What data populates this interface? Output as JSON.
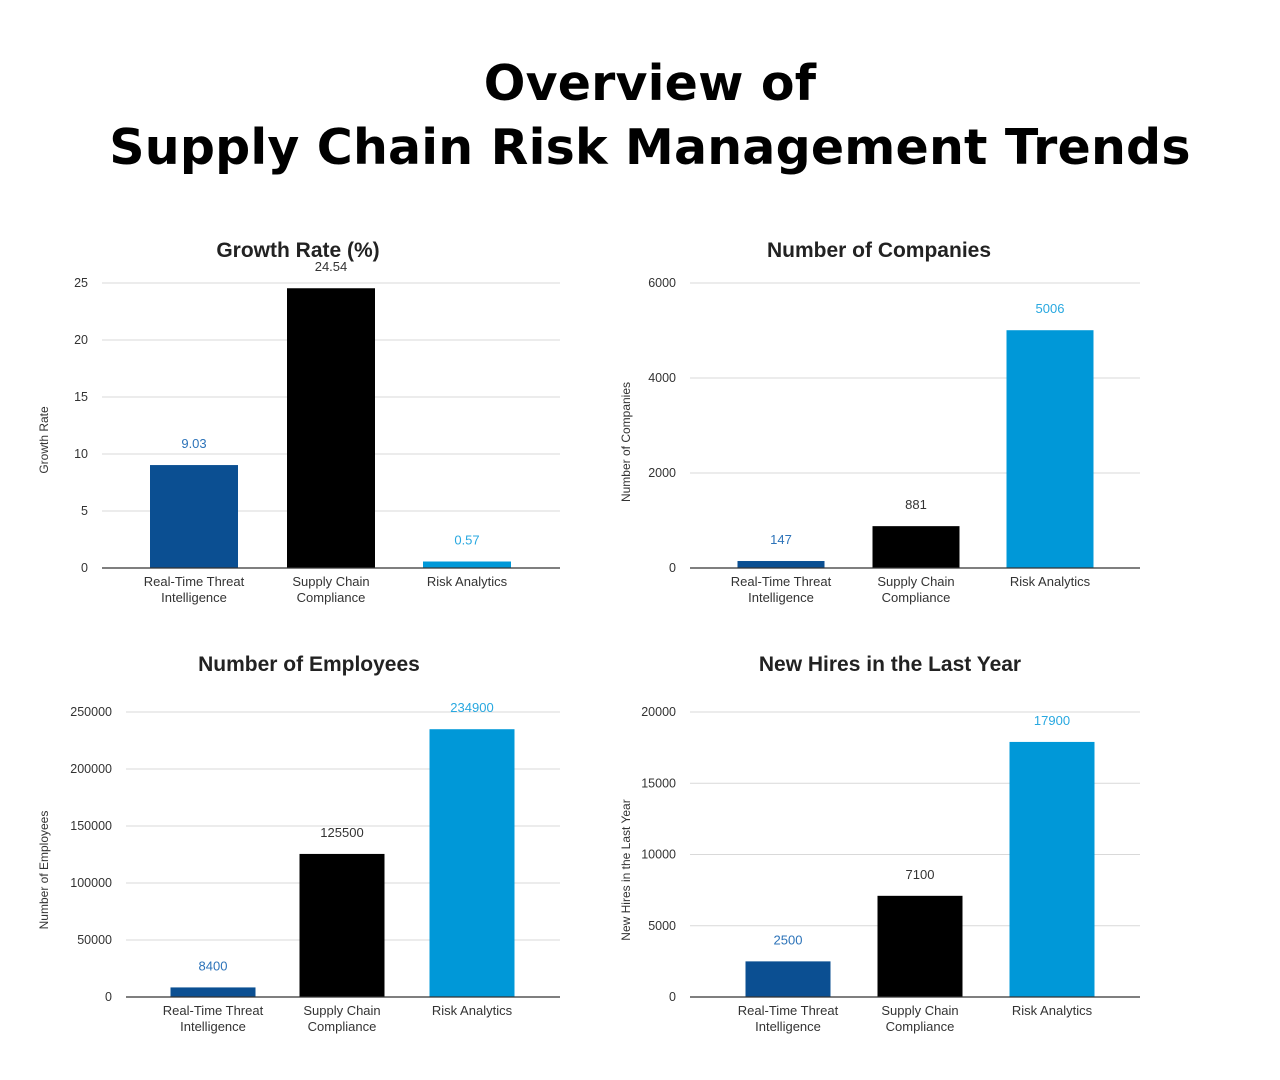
{
  "page": {
    "title_line1": "Overview of",
    "title_line2": "Supply Chain Risk Management Trends"
  },
  "colors": {
    "series": [
      "#0b4f92",
      "#000000",
      "#0098d8"
    ],
    "data_labels": [
      "#2c73b9",
      "#333333",
      "#28a8e0"
    ],
    "grid": "#d9d9d9",
    "axis": "#333333"
  },
  "chart_data": [
    {
      "type": "bar",
      "title": "Growth Rate (%)",
      "ylabel": "Growth Rate",
      "xlabel": "",
      "categories": [
        [
          "Real-Time Threat",
          "Intelligence"
        ],
        [
          "Supply Chain",
          "Compliance"
        ],
        [
          "Risk Analytics"
        ]
      ],
      "values": [
        9.03,
        24.54,
        0.57
      ],
      "value_labels": [
        "9.03",
        "24.54",
        "0.57"
      ],
      "ylim": [
        0,
        25
      ],
      "yticks": [
        0,
        5,
        10,
        15,
        20,
        25
      ],
      "grid": true,
      "legend": "none"
    },
    {
      "type": "bar",
      "title": "Number of Companies",
      "ylabel": "Number of Companies",
      "xlabel": "",
      "categories": [
        [
          "Real-Time Threat",
          "Intelligence"
        ],
        [
          "Supply Chain",
          "Compliance"
        ],
        [
          "Risk Analytics"
        ]
      ],
      "values": [
        147,
        881,
        5006
      ],
      "value_labels": [
        "147",
        "881",
        "5006"
      ],
      "ylim": [
        0,
        6000
      ],
      "yticks": [
        0,
        2000,
        4000,
        6000
      ],
      "grid": true,
      "legend": "none"
    },
    {
      "type": "bar",
      "title": "Number of Employees",
      "ylabel": "Number of Employees",
      "xlabel": "",
      "categories": [
        [
          "Real-Time Threat",
          "Intelligence"
        ],
        [
          "Supply Chain",
          "Compliance"
        ],
        [
          "Risk Analytics"
        ]
      ],
      "values": [
        8400,
        125500,
        234900
      ],
      "value_labels": [
        "8400",
        "125500",
        "234900"
      ],
      "ylim": [
        0,
        250000
      ],
      "yticks": [
        0,
        50000,
        100000,
        150000,
        200000,
        250000
      ],
      "grid": true,
      "legend": "none"
    },
    {
      "type": "bar",
      "title": "New Hires in the Last Year",
      "ylabel": "New Hires in the Last Year",
      "xlabel": "",
      "categories": [
        [
          "Real-Time Threat",
          "Intelligence"
        ],
        [
          "Supply Chain",
          "Compliance"
        ],
        [
          "Risk Analytics"
        ]
      ],
      "values": [
        2500,
        7100,
        17900
      ],
      "value_labels": [
        "2500",
        "7100",
        "17900"
      ],
      "ylim": [
        0,
        20000
      ],
      "yticks": [
        0,
        5000,
        10000,
        15000,
        20000
      ],
      "grid": true,
      "legend": "none"
    }
  ]
}
